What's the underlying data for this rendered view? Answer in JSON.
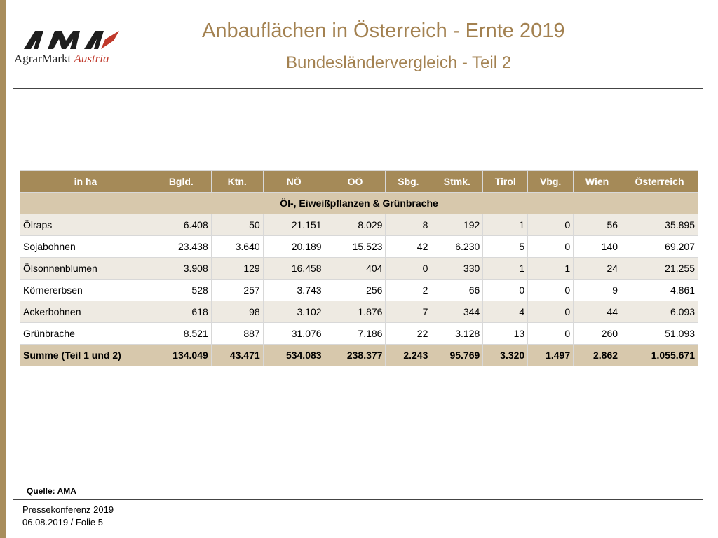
{
  "header": {
    "title": "Anbauflächen in Österreich - Ernte 2019",
    "subtitle": "Bundesländervergleich - Teil 2"
  },
  "logo": {
    "word_agrar": "Agrar",
    "word_markt": "Markt",
    "word_austria": "Austria",
    "colors": {
      "letters": "#1f1f1f",
      "accent": "#c0392b"
    }
  },
  "colors": {
    "title": "#a38150",
    "header_row": "#a58a58",
    "section_row": "#d7c8ac",
    "stripe": "#eeeae2",
    "left_bar": "#a88d5c"
  },
  "table": {
    "columns": [
      "in ha",
      "Bgld.",
      "Ktn.",
      "NÖ",
      "OÖ",
      "Sbg.",
      "Stmk.",
      "Tirol",
      "Vbg.",
      "Wien",
      "Österreich"
    ],
    "section_title": "Öl-, Eiweißpflanzen & Grünbrache",
    "rows": [
      {
        "label": "Ölraps",
        "cells": [
          "6.408",
          "50",
          "21.151",
          "8.029",
          "8",
          "192",
          "1",
          "0",
          "56",
          "35.895"
        ]
      },
      {
        "label": "Sojabohnen",
        "cells": [
          "23.438",
          "3.640",
          "20.189",
          "15.523",
          "42",
          "6.230",
          "5",
          "0",
          "140",
          "69.207"
        ]
      },
      {
        "label": "Ölsonnenblumen",
        "cells": [
          "3.908",
          "129",
          "16.458",
          "404",
          "0",
          "330",
          "1",
          "1",
          "24",
          "21.255"
        ]
      },
      {
        "label": "Körnererbsen",
        "cells": [
          "528",
          "257",
          "3.743",
          "256",
          "2",
          "66",
          "0",
          "0",
          "9",
          "4.861"
        ]
      },
      {
        "label": "Ackerbohnen",
        "cells": [
          "618",
          "98",
          "3.102",
          "1.876",
          "7",
          "344",
          "4",
          "0",
          "44",
          "6.093"
        ]
      },
      {
        "label": "Grünbrache",
        "cells": [
          "8.521",
          "887",
          "31.076",
          "7.186",
          "22",
          "3.128",
          "13",
          "0",
          "260",
          "51.093"
        ]
      }
    ],
    "sum_row": {
      "label": "Summe (Teil 1 und 2)",
      "cells": [
        "134.049",
        "43.471",
        "534.083",
        "238.377",
        "2.243",
        "95.769",
        "3.320",
        "1.497",
        "2.862",
        "1.055.671"
      ]
    }
  },
  "source": "Quelle: AMA",
  "footer": {
    "line1": "Pressekonferenz 2019",
    "line2": "06.08.2019 / Folie 5"
  }
}
